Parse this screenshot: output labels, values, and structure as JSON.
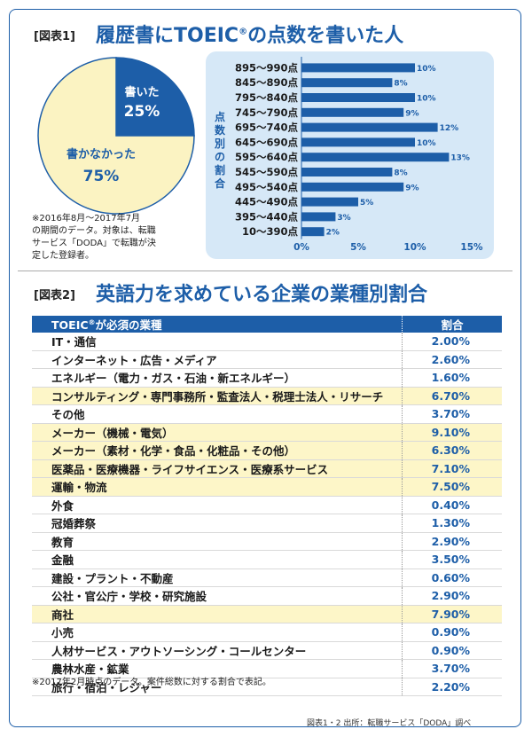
{
  "figure1": {
    "label": "[図表1]",
    "title_main": "履歴書にTOEIC",
    "title_reg": "®",
    "title_rest": "の点数を書いた人",
    "pie": {
      "slices": [
        {
          "label": "書いた",
          "value": 25,
          "value_text": "25%",
          "color": "#1d5ea8"
        },
        {
          "label": "書かなかった",
          "value": 75,
          "value_text": "75%",
          "color": "#fbf3c2"
        }
      ]
    },
    "note": [
      "※2016年8月～2017年7月",
      "の期間のデータ。対象は、転職",
      "サービス「DODA」で転職が決",
      "定した登録者。"
    ]
  },
  "chart_data": {
    "type": "bar",
    "orientation": "horizontal",
    "ylabel": "点数別の割合",
    "categories": [
      "895～990点",
      "845～890点",
      "795～840点",
      "745～790点",
      "695～740点",
      "645～690点",
      "595～640点",
      "545～590点",
      "495～540点",
      "445～490点",
      "395～440点",
      "10～390点"
    ],
    "values": [
      10,
      8,
      10,
      9,
      12,
      10,
      13,
      8,
      9,
      5,
      3,
      2
    ],
    "value_labels": [
      "10%",
      "8%",
      "10%",
      "9%",
      "12%",
      "10%",
      "13%",
      "8%",
      "9%",
      "5%",
      "3%",
      "2%"
    ],
    "xlim": [
      0,
      15
    ],
    "ticks": [
      0,
      5,
      10,
      15
    ],
    "tick_labels": [
      "0%",
      "5%",
      "10%",
      "15%"
    ],
    "bar_color": "#1d5ea8"
  },
  "figure2": {
    "label": "[図表2]",
    "title": "英語力を求めている企業の業種別割合",
    "header_industry": "TOEIC",
    "header_reg": "®",
    "header_industry_rest": "が必須の業種",
    "header_rate": "割合",
    "rows": [
      {
        "industry": "IT・通信",
        "rate": "2.00%",
        "highlight": false
      },
      {
        "industry": "インターネット・広告・メディア",
        "rate": "2.60%",
        "highlight": false
      },
      {
        "industry": "エネルギー（電力・ガス・石油・新エネルギー）",
        "rate": "1.60%",
        "highlight": false
      },
      {
        "industry": "コンサルティング・専門事務所・監査法人・税理士法人・リサーチ",
        "rate": "6.70%",
        "highlight": true
      },
      {
        "industry": "その他",
        "rate": "3.70%",
        "highlight": false
      },
      {
        "industry": "メーカー（機械・電気）",
        "rate": "9.10%",
        "highlight": true
      },
      {
        "industry": "メーカー（素材・化学・食品・化粧品・その他）",
        "rate": "6.30%",
        "highlight": true
      },
      {
        "industry": "医薬品・医療機器・ライフサイエンス・医療系サービス",
        "rate": "7.10%",
        "highlight": true
      },
      {
        "industry": "運輸・物流",
        "rate": "7.50%",
        "highlight": true
      },
      {
        "industry": "外食",
        "rate": "0.40%",
        "highlight": false
      },
      {
        "industry": "冠婚葬祭",
        "rate": "1.30%",
        "highlight": false
      },
      {
        "industry": "教育",
        "rate": "2.90%",
        "highlight": false
      },
      {
        "industry": "金融",
        "rate": "3.50%",
        "highlight": false
      },
      {
        "industry": "建設・プラント・不動産",
        "rate": "0.60%",
        "highlight": false
      },
      {
        "industry": "公社・官公庁・学校・研究施設",
        "rate": "2.90%",
        "highlight": false
      },
      {
        "industry": "商社",
        "rate": "7.90%",
        "highlight": true
      },
      {
        "industry": "小売",
        "rate": "0.90%",
        "highlight": false
      },
      {
        "industry": "人材サービス・アウトソーシング・コールセンター",
        "rate": "0.90%",
        "highlight": false
      },
      {
        "industry": "農林水産・鉱業",
        "rate": "3.70%",
        "highlight": false
      },
      {
        "industry": "旅行・宿泊・レジャー",
        "rate": "2.20%",
        "highlight": false
      }
    ],
    "note": "※2017年2月時点のデータ。案件総数に対する割合で表記。"
  },
  "source": "図表1・2 出所：転職サービス「DODA」調べ"
}
